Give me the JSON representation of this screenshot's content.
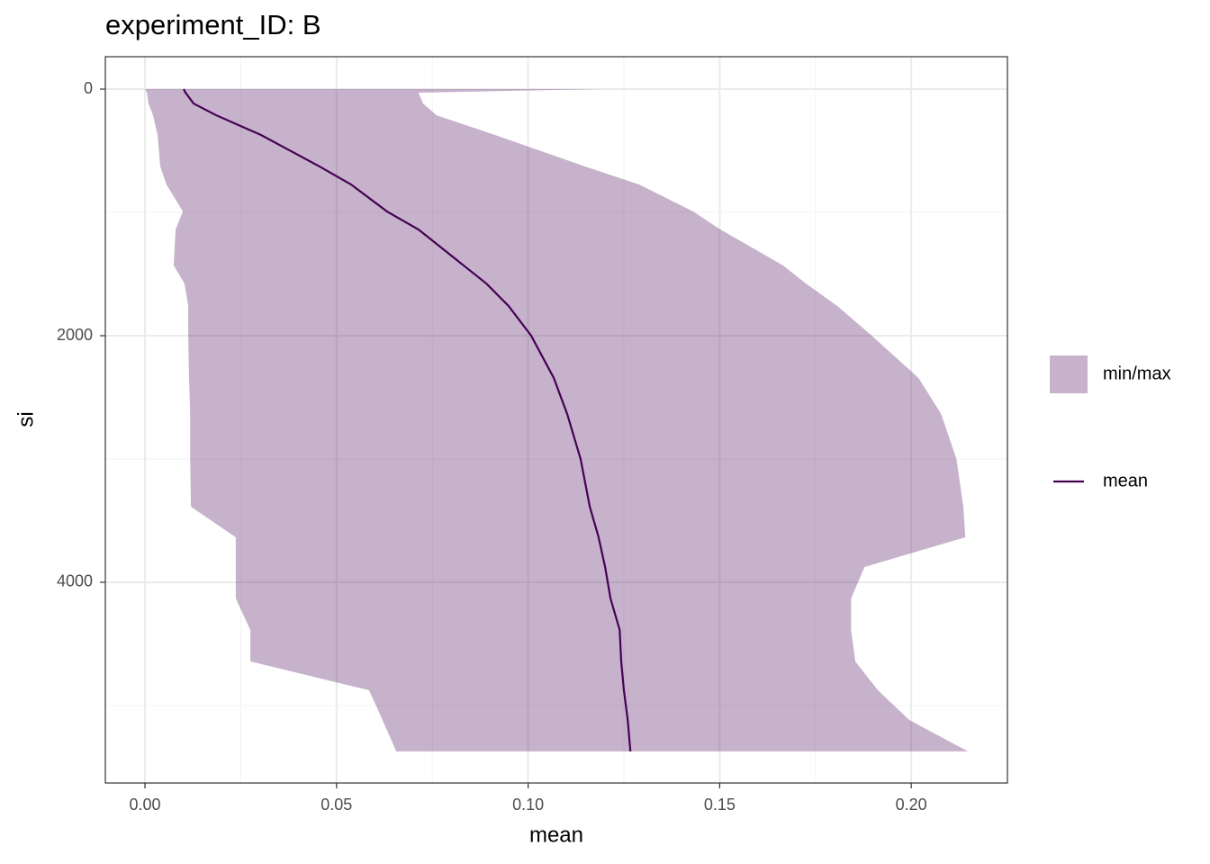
{
  "chart_data": {
    "type": "ribbon-line",
    "title": "experiment_ID: B",
    "x_label": "mean",
    "y_label": "si",
    "y": [
      0,
      29,
      117,
      212,
      372,
      628,
      774,
      993,
      1139,
      1431,
      1577,
      1759,
      2000,
      2343,
      2635,
      3000,
      3387,
      3635,
      3876,
      4131,
      4387,
      4642,
      4876,
      5117,
      5372
    ],
    "series": [
      {
        "name": "min/max",
        "color": "#440154",
        "alpha": 0.3,
        "lower": [
          0,
          0.0005,
          0.0009,
          0.0021,
          0.0033,
          0.004,
          0.0056,
          0.0099,
          0.008,
          0.0075,
          0.0103,
          0.0113,
          0.0113,
          0.0115,
          0.0118,
          0.0118,
          0.012,
          0.0237,
          0.0237,
          0.0237,
          0.0275,
          0.0275,
          0.0585,
          0.062,
          0.0656
        ],
        "upper": [
          0.1194,
          0.0714,
          0.0726,
          0.0761,
          0.0914,
          0.1149,
          0.129,
          0.1431,
          0.1502,
          0.1666,
          0.1725,
          0.1807,
          0.1897,
          0.2019,
          0.2078,
          0.2118,
          0.2136,
          0.2141,
          0.1878,
          0.1843,
          0.1843,
          0.1854,
          0.1913,
          0.1995,
          0.2148
        ]
      },
      {
        "name": "mean",
        "color": "#440154",
        "values": [
          0.0101,
          0.0106,
          0.0127,
          0.0186,
          0.0303,
          0.0456,
          0.0538,
          0.0632,
          0.0714,
          0.0832,
          0.0891,
          0.0949,
          0.1008,
          0.1067,
          0.1102,
          0.1137,
          0.1161,
          0.1184,
          0.1201,
          0.1215,
          0.1239,
          0.1243,
          0.125,
          0.126,
          0.1267
        ]
      }
    ],
    "xlim": [
      -0.01034,
      0.2251
    ],
    "xticks": [
      {
        "value": 0,
        "label": "0.00"
      },
      0.05,
      {
        "value": 0.1,
        "label": "0.10"
      },
      0.15,
      {
        "value": 0.2,
        "label": "0.20"
      }
    ],
    "x_minor_ticks": [
      0.025,
      0.075,
      0.125,
      0.175
    ],
    "ylim": [
      -263,
      5628
    ],
    "y_reversed": true,
    "yticks": [
      0,
      2000,
      4000
    ],
    "y_minor_ticks": [
      1000,
      3000,
      5000
    ],
    "grid": true,
    "legend": "right"
  }
}
